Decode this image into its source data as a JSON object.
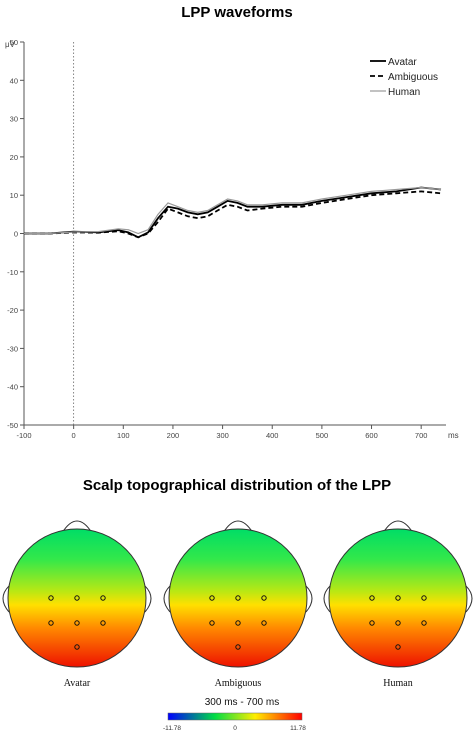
{
  "figure": {
    "title_waveforms": "LPP waveforms",
    "title_topography": "Scalp topographical distribution of the LPP"
  },
  "chart_data": [
    {
      "type": "line",
      "title": "LPP waveforms",
      "ylabel": "μV",
      "xlabel": "ms",
      "xlim": [
        -100,
        750
      ],
      "ylim": [
        -50,
        50
      ],
      "x_ticks": [
        -100,
        0,
        100,
        200,
        300,
        400,
        500,
        600,
        700
      ],
      "y_ticks": [
        50,
        40,
        30,
        20,
        10,
        0,
        -10,
        -20,
        -30,
        -40,
        -50
      ],
      "stimulus_onset_marker": 0,
      "grid": false,
      "legend_position": "top-right",
      "series": [
        {
          "name": "Avatar",
          "style": "solid",
          "color": "#000000",
          "x": [
            -100,
            -50,
            0,
            50,
            90,
            110,
            130,
            150,
            170,
            190,
            210,
            230,
            250,
            270,
            290,
            310,
            330,
            350,
            380,
            420,
            460,
            500,
            550,
            600,
            650,
            700,
            740
          ],
          "y": [
            0,
            0,
            0.5,
            0.3,
            0.9,
            0.3,
            -1,
            0.3,
            4,
            7,
            6.5,
            5.5,
            5,
            5.5,
            7,
            8.5,
            8,
            7,
            7,
            7.5,
            7.5,
            8.5,
            9.5,
            10.5,
            11,
            12,
            11.5
          ]
        },
        {
          "name": "Ambiguous",
          "style": "dashed",
          "color": "#000000",
          "x": [
            -100,
            -50,
            0,
            50,
            90,
            110,
            130,
            150,
            170,
            190,
            210,
            230,
            250,
            270,
            290,
            310,
            330,
            350,
            380,
            420,
            460,
            500,
            550,
            600,
            650,
            700,
            740
          ],
          "y": [
            0,
            0,
            0.3,
            0.2,
            0.6,
            0,
            -1,
            0,
            3,
            6.5,
            5.5,
            4.5,
            4,
            4.5,
            6,
            7.5,
            7,
            6,
            6.5,
            7,
            7,
            8,
            9,
            10,
            10.5,
            11,
            10.5
          ]
        },
        {
          "name": "Human",
          "style": "solid",
          "color": "#999999",
          "x": [
            -100,
            -50,
            0,
            50,
            90,
            110,
            130,
            150,
            170,
            190,
            210,
            230,
            250,
            270,
            290,
            310,
            330,
            350,
            380,
            420,
            460,
            500,
            550,
            600,
            650,
            700,
            740
          ],
          "y": [
            0,
            0,
            0.4,
            0.5,
            1.2,
            1,
            0,
            1,
            5,
            8,
            7,
            6,
            5.5,
            6,
            7.5,
            9,
            8.5,
            7.5,
            7.5,
            8,
            8,
            9,
            10,
            11,
            11.5,
            12,
            11.5
          ]
        }
      ],
      "x_series_data_points_note_removed": null
    },
    {
      "type": "heatmap",
      "subtype": "scalp topography",
      "maps": [
        {
          "name": "Avatar"
        },
        {
          "name": "Ambiguous"
        },
        {
          "name": "Human"
        }
      ],
      "electrode_count_per_map": 7,
      "time_window_label": "300 ms - 700 ms",
      "colorbar": {
        "min_label": "-11.78",
        "mid_label": "0",
        "max_label": "11.78",
        "colors": [
          "#0000ff",
          "#00ff00",
          "#ffff00",
          "#ff0000"
        ]
      },
      "map_gradient_colors": [
        "#00e65a",
        "#33ee44",
        "#d9e60a",
        "#ffcc00",
        "#ff6600",
        "#ee1100"
      ]
    }
  ]
}
